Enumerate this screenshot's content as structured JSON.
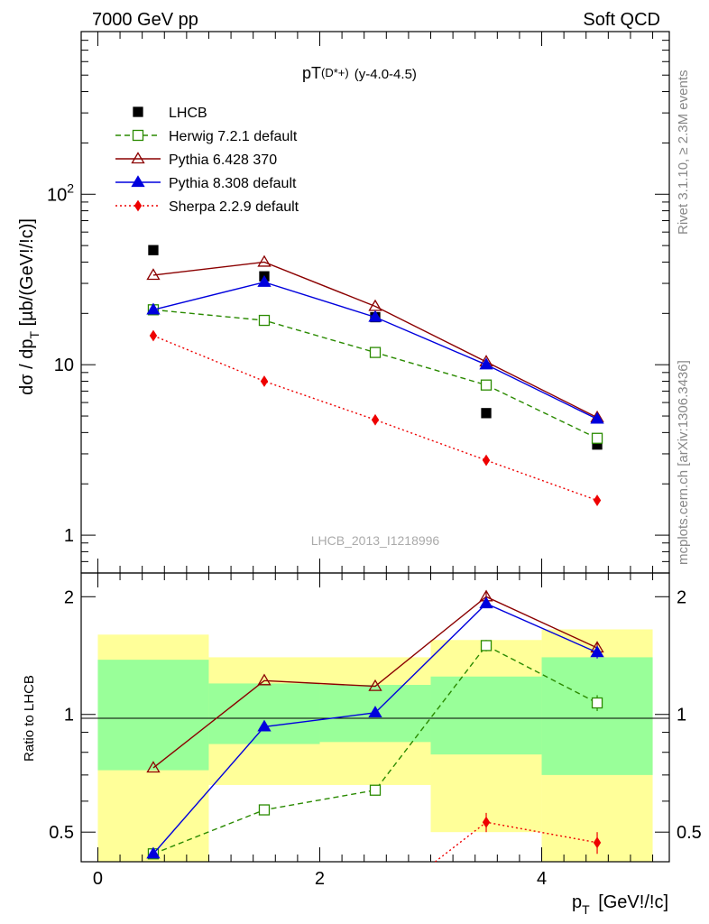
{
  "header": {
    "left": "7000 GeV pp",
    "right": "Soft QCD"
  },
  "side_labels": {
    "rivet": "Rivet 3.1.10, ≥ 2.3M events",
    "mcplots": "mcplots.cern.ch [arXiv:1306.3436]"
  },
  "watermark": "LHCB_2013_I1218996",
  "chart_data": [
    {
      "type": "line",
      "title_main": "pT",
      "title_sup": "(D*+)",
      "title_rest": "(y-4.0-4.5)",
      "xlabel": "p_T [GeV!/!c]",
      "ylabel": "dσ / dp_T [µb/(GeV!/!c)]",
      "xlim": [
        -0.15,
        5.15
      ],
      "ylim": [
        0.6,
        900
      ],
      "yscale": "log",
      "yticks": [
        {
          "value": 1,
          "label": "1"
        },
        {
          "value": 10,
          "label": "10"
        },
        {
          "value": 100,
          "label": "10^2"
        }
      ],
      "legend": {
        "placement": "top-left"
      },
      "series": [
        {
          "name": "LHCB",
          "color": "#000000",
          "marker": "filled-square",
          "dash": "none",
          "x": [
            0.5,
            1.5,
            2.5,
            3.5,
            4.5
          ],
          "y": [
            47,
            33,
            19,
            5.2,
            3.4
          ],
          "err": [
            0,
            0,
            0,
            0,
            0.2
          ]
        },
        {
          "name": "Herwig 7.2.1 default",
          "color": "#2a8a00",
          "marker": "open-square",
          "dash": "6,4",
          "x": [
            0.5,
            1.5,
            2.5,
            3.5,
            4.5
          ],
          "y": [
            21,
            18.2,
            11.8,
            7.6,
            3.7
          ],
          "err": [
            0,
            0,
            0,
            0.3,
            0.2
          ]
        },
        {
          "name": "Pythia 6.428 370",
          "color": "#8b0000",
          "marker": "open-triangle",
          "dash": "none",
          "x": [
            0.5,
            1.5,
            2.5,
            3.5,
            4.5
          ],
          "y": [
            33.5,
            40,
            22,
            10.4,
            4.9
          ],
          "err": [
            0,
            0,
            0,
            0,
            0.2
          ]
        },
        {
          "name": "Pythia 8.308 default",
          "color": "#0000dd",
          "marker": "filled-triangle",
          "dash": "none",
          "x": [
            0.5,
            1.5,
            2.5,
            3.5,
            4.5
          ],
          "y": [
            21,
            30.5,
            19,
            10,
            4.8
          ],
          "err": [
            0,
            0,
            0,
            0,
            0.2
          ]
        },
        {
          "name": "Sherpa 2.2.9 default",
          "color": "#ee0000",
          "marker": "filled-diamond",
          "dash": "2,3",
          "x": [
            0.5,
            1.5,
            2.5,
            3.5,
            4.5
          ],
          "y": [
            14.8,
            8,
            4.75,
            2.75,
            1.6
          ],
          "err": [
            0,
            0,
            0,
            0.1,
            0.08
          ]
        }
      ]
    },
    {
      "type": "line",
      "xlabel": "p_T [GeV!/!c]",
      "ylabel": "Ratio to LHCB",
      "xlim": [
        -0.15,
        5.15
      ],
      "ylim": [
        0.42,
        2.3
      ],
      "yscale": "log",
      "xticks": [
        0,
        2,
        4
      ],
      "yticks": [
        {
          "value": 0.5,
          "label": "0.5"
        },
        {
          "value": 1,
          "label": "1"
        },
        {
          "value": 2,
          "label": "2"
        }
      ],
      "bands": [
        {
          "x0": 0,
          "x1": 1,
          "yellow": [
            0.36,
            1.6
          ],
          "green": [
            0.72,
            1.38
          ]
        },
        {
          "x0": 1,
          "x1": 2,
          "yellow": [
            0.66,
            1.4
          ],
          "green": [
            0.84,
            1.2
          ]
        },
        {
          "x0": 2,
          "x1": 3,
          "yellow": [
            0.66,
            1.4
          ],
          "green": [
            0.85,
            1.19
          ]
        },
        {
          "x0": 3,
          "x1": 4,
          "yellow": [
            0.5,
            1.55
          ],
          "green": [
            0.79,
            1.25
          ]
        },
        {
          "x0": 4,
          "x1": 5,
          "yellow": [
            0.36,
            1.65
          ],
          "green": [
            0.7,
            1.4
          ]
        }
      ],
      "band_colors": {
        "yellow": "#ffff99",
        "green": "#99ff99"
      },
      "series": [
        {
          "name": "Herwig 7.2.1 default",
          "color": "#2a8a00",
          "marker": "open-square",
          "dash": "6,4",
          "x": [
            0.5,
            1.5,
            2.5,
            3.5,
            4.5
          ],
          "y": [
            0.44,
            0.57,
            0.64,
            1.5,
            1.07
          ],
          "err": [
            0,
            0,
            0,
            0.05,
            0.05
          ]
        },
        {
          "name": "Pythia 6.428 370",
          "color": "#8b0000",
          "marker": "open-triangle",
          "dash": "none",
          "x": [
            0.5,
            1.5,
            2.5,
            3.5,
            4.5
          ],
          "y": [
            0.73,
            1.22,
            1.18,
            2.0,
            1.48
          ],
          "err": [
            0,
            0,
            0,
            0.06,
            0.05
          ]
        },
        {
          "name": "Pythia 8.308 default",
          "color": "#0000dd",
          "marker": "filled-triangle",
          "dash": "none",
          "x": [
            0.5,
            1.5,
            2.5,
            3.5,
            4.5
          ],
          "y": [
            0.44,
            0.93,
            1.01,
            1.92,
            1.44
          ],
          "err": [
            0,
            0,
            0,
            0.05,
            0.05
          ]
        },
        {
          "name": "Sherpa 2.2.9 default",
          "color": "#ee0000",
          "marker": "filled-diamond",
          "dash": "2,3",
          "x": [
            3.04,
            3.5,
            4.5
          ],
          "y": [
            0.42,
            0.53,
            0.47
          ],
          "err": [
            0,
            0.03,
            0.03
          ],
          "draw_marker": [
            false,
            true,
            true
          ]
        }
      ],
      "reference_line": 1
    }
  ]
}
